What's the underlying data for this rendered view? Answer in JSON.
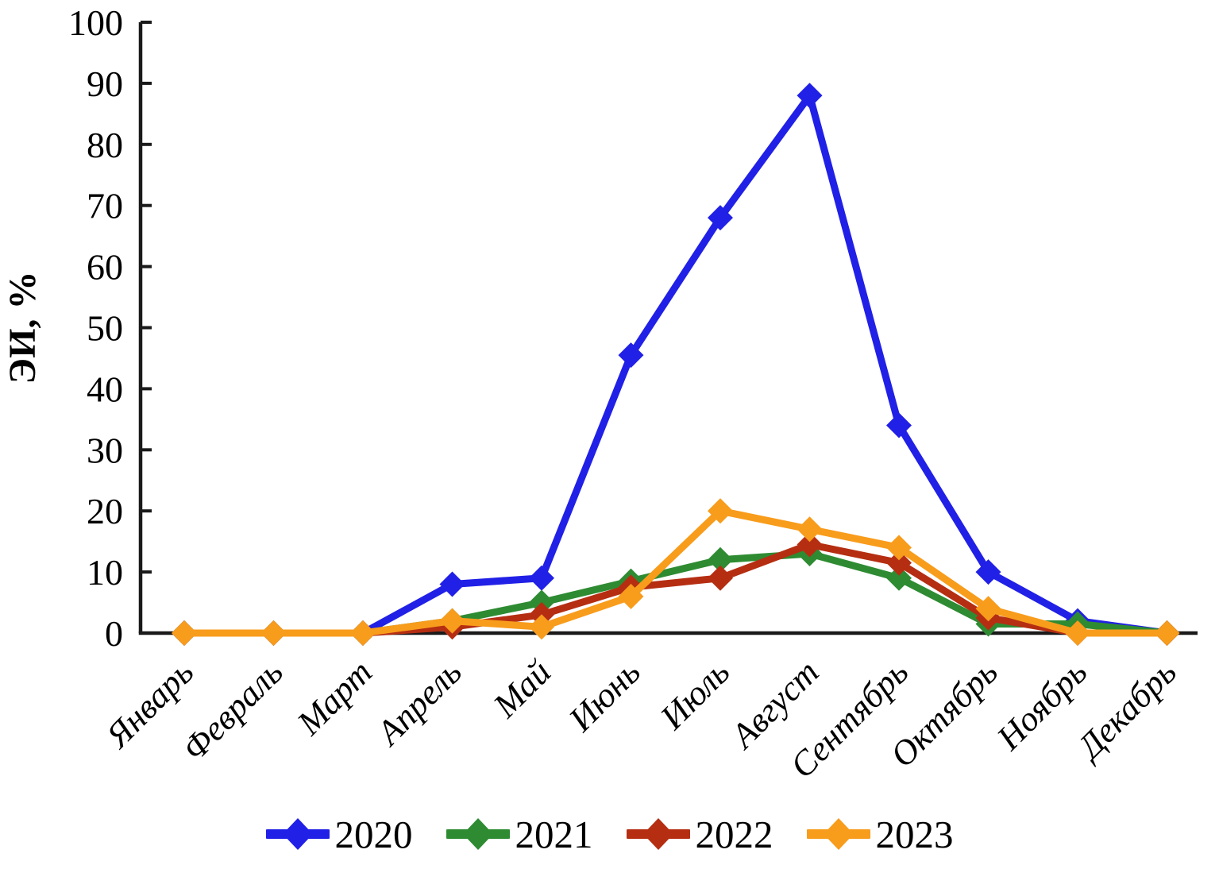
{
  "chart_data": {
    "type": "line",
    "title": "",
    "xlabel": "",
    "ylabel": "ЭИ, %",
    "ylim": [
      0,
      100
    ],
    "ytick_step": 10,
    "grid": false,
    "marker": "diamond",
    "legend_position": "bottom",
    "axis_color": "#1a1a1a",
    "categories": [
      "Январь",
      "Февраль",
      "Март",
      "Апрель",
      "Май",
      "Июнь",
      "Июль",
      "Август",
      "Сентябрь",
      "Октябрь",
      "Ноябрь",
      "Декабрь"
    ],
    "series": [
      {
        "name": "2020",
        "color": "#2120e6",
        "values": [
          0,
          0,
          0,
          8,
          9,
          45.5,
          68,
          88,
          34,
          10,
          2,
          0
        ]
      },
      {
        "name": "2021",
        "color": "#2e8b32",
        "values": [
          0,
          0,
          0,
          2,
          5,
          8.5,
          12,
          13,
          9,
          1.5,
          1.5,
          0
        ]
      },
      {
        "name": "2022",
        "color": "#b52e12",
        "values": [
          0,
          0,
          0,
          1,
          3,
          7.5,
          9,
          14.5,
          11.5,
          2.5,
          0,
          0
        ]
      },
      {
        "name": "2023",
        "color": "#f89c1c",
        "values": [
          0,
          0,
          0,
          2,
          1,
          6,
          20,
          17,
          14,
          4,
          0,
          0
        ]
      }
    ]
  }
}
